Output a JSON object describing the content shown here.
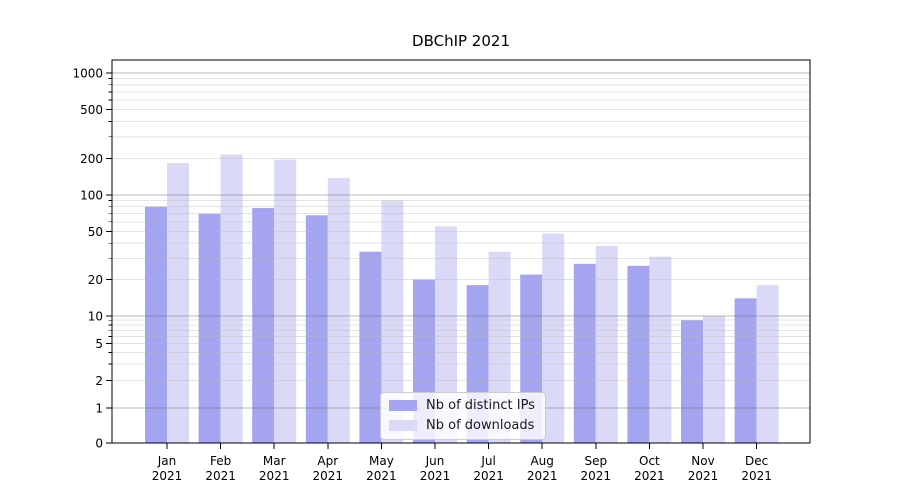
{
  "title": "DBChIP 2021",
  "chart_data": {
    "type": "bar",
    "scale": "symlog",
    "title": "DBChIP 2021",
    "xlabel": "",
    "ylabel": "",
    "grid": true,
    "legend_position": "lower center",
    "categories": [
      "Jan 2021",
      "Feb 2021",
      "Mar 2021",
      "Apr 2021",
      "May 2021",
      "Jun 2021",
      "Jul 2021",
      "Aug 2021",
      "Sep 2021",
      "Oct 2021",
      "Nov 2021",
      "Dec 2021"
    ],
    "series": [
      {
        "name": "Nb of distinct IPs",
        "color": "#a4a4f1",
        "values": [
          80,
          70,
          78,
          68,
          34,
          20,
          18,
          22,
          27,
          26,
          9,
          14
        ]
      },
      {
        "name": "Nb of downloads",
        "color": "#dadaf8",
        "values": [
          183,
          215,
          195,
          138,
          90,
          55,
          34,
          48,
          38,
          31,
          10,
          18
        ]
      }
    ],
    "yticks": [
      1000,
      500,
      200,
      100,
      50,
      20,
      10,
      5,
      2,
      1,
      0
    ],
    "ylim": [
      0,
      1280
    ]
  },
  "colors": {
    "major_grid": "rgba(100,100,100,0.45)",
    "minor_grid": "rgba(185,185,185,0.40)",
    "axis": "#000000",
    "legend_border": "#cccccc",
    "legend_background": "rgba(255,255,255,0.8)"
  }
}
